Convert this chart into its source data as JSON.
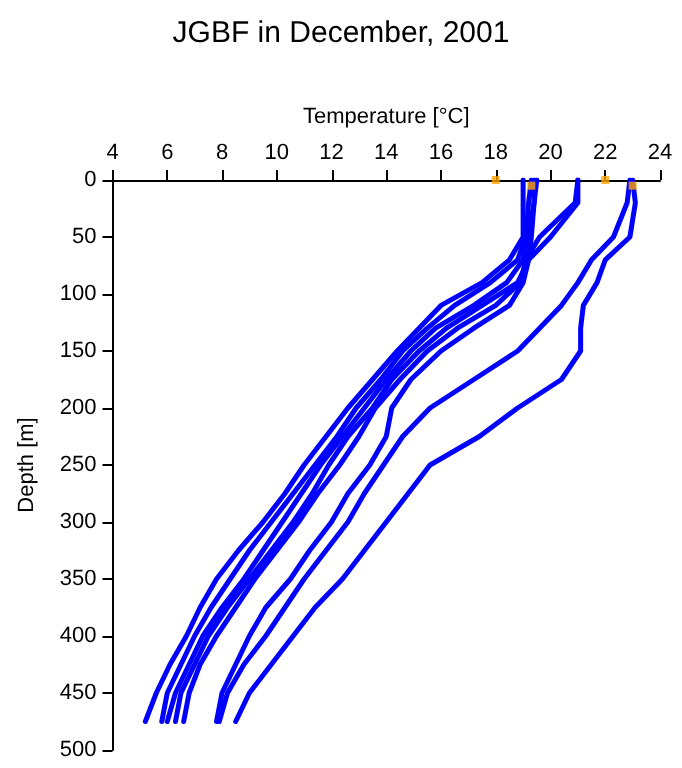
{
  "chart_data": {
    "type": "line",
    "title": "JGBF in December, 2001",
    "xlabel": "Temperature [°C]",
    "ylabel": "Depth [m]",
    "xlim": [
      4,
      24
    ],
    "xticks": [
      4,
      6,
      8,
      10,
      12,
      14,
      16,
      18,
      20,
      22,
      24
    ],
    "ylim": [
      500,
      0
    ],
    "yticks": [
      0,
      50,
      100,
      150,
      200,
      250,
      300,
      350,
      400,
      450,
      500
    ],
    "grid": false,
    "marker": "none",
    "line_style": "solid",
    "series": [
      {
        "color": "#0000ff",
        "x": [
          19.0,
          19.0,
          19.0,
          18.5,
          17.5,
          16.0,
          15.2,
          14.4,
          13.5,
          12.6,
          11.8,
          11.0,
          10.3,
          9.5,
          8.6,
          7.8,
          7.2,
          6.7,
          6.1,
          5.6,
          5.2
        ],
        "values": [
          0,
          20,
          50,
          70,
          90,
          110,
          130,
          150,
          175,
          200,
          225,
          250,
          275,
          300,
          325,
          350,
          375,
          400,
          425,
          450,
          475
        ]
      },
      {
        "color": "#0000ff",
        "x": [
          19.3,
          19.2,
          19.1,
          18.8,
          17.8,
          16.5,
          15.5,
          14.6,
          13.8,
          12.9,
          12.2,
          11.4,
          10.6,
          9.8,
          9.0,
          8.3,
          7.6,
          7.0,
          6.5,
          6.0,
          5.8
        ],
        "values": [
          0,
          20,
          50,
          70,
          90,
          110,
          130,
          150,
          175,
          200,
          225,
          250,
          275,
          300,
          325,
          350,
          375,
          400,
          425,
          450,
          475
        ]
      },
      {
        "color": "#0000ff",
        "x": [
          19.5,
          19.4,
          19.2,
          19.0,
          18.4,
          17.2,
          15.8,
          14.9,
          14.0,
          13.2,
          12.4,
          11.6,
          10.9,
          10.2,
          9.5,
          8.8,
          8.0,
          7.3,
          6.8,
          6.3,
          6.0
        ],
        "values": [
          0,
          20,
          50,
          70,
          90,
          110,
          130,
          150,
          175,
          200,
          225,
          250,
          275,
          300,
          325,
          350,
          375,
          400,
          425,
          450,
          475
        ]
      },
      {
        "color": "#0000ff",
        "x": [
          21.0,
          21.0,
          20.0,
          19.2,
          18.8,
          17.5,
          16.2,
          15.2,
          14.2,
          13.5,
          12.6,
          11.9,
          11.3,
          10.6,
          9.8,
          9.0,
          8.2,
          7.5,
          7.0,
          6.5,
          6.3
        ],
        "values": [
          0,
          20,
          50,
          70,
          90,
          110,
          130,
          150,
          175,
          200,
          225,
          250,
          275,
          300,
          325,
          350,
          375,
          400,
          425,
          450,
          475
        ]
      },
      {
        "color": "#0000ff",
        "x": [
          21.0,
          20.9,
          19.6,
          19.1,
          18.9,
          18.0,
          16.6,
          15.5,
          14.5,
          13.6,
          13.0,
          12.3,
          11.5,
          10.8,
          10.0,
          9.2,
          8.5,
          7.8,
          7.2,
          6.8,
          6.6
        ],
        "values": [
          0,
          20,
          50,
          70,
          90,
          110,
          130,
          150,
          175,
          200,
          225,
          250,
          275,
          300,
          325,
          350,
          375,
          400,
          425,
          450,
          475
        ]
      },
      {
        "color": "#0000ff",
        "x": [
          19.4,
          19.4,
          19.3,
          19.2,
          19.0,
          18.5,
          17.2,
          16.0,
          14.9,
          14.2,
          14.0,
          13.4,
          12.6,
          12.0,
          11.2,
          10.5,
          9.6,
          9.0,
          8.5,
          8.0,
          7.8
        ],
        "values": [
          0,
          20,
          50,
          70,
          90,
          110,
          130,
          150,
          175,
          200,
          225,
          250,
          275,
          300,
          325,
          350,
          375,
          400,
          425,
          450,
          475
        ]
      },
      {
        "color": "#0000ff",
        "x": [
          23.0,
          23.1,
          22.9,
          22.0,
          21.7,
          21.2,
          21.1,
          21.1,
          20.4,
          18.8,
          17.4,
          15.6,
          14.8,
          14.0,
          13.2,
          12.4,
          11.4,
          10.6,
          9.8,
          9.0,
          8.5
        ],
        "values": [
          0,
          20,
          50,
          70,
          90,
          110,
          130,
          150,
          175,
          200,
          225,
          250,
          275,
          300,
          325,
          350,
          375,
          400,
          425,
          450,
          475
        ]
      },
      {
        "color": "#0000ff",
        "x": [
          22.9,
          22.8,
          22.3,
          21.5,
          21.0,
          20.4,
          19.6,
          18.8,
          17.2,
          15.6,
          14.6,
          13.9,
          13.2,
          12.6,
          11.8,
          11.0,
          10.3,
          9.6,
          8.8,
          8.2,
          7.9
        ],
        "values": [
          0,
          20,
          50,
          70,
          90,
          110,
          130,
          150,
          175,
          200,
          225,
          250,
          275,
          300,
          325,
          350,
          375,
          400,
          425,
          450,
          475
        ]
      },
      {
        "type": "scatter",
        "marker": "square",
        "color": "#ffa500",
        "x": [
          18.0,
          19.3,
          22.0,
          23.0
        ],
        "values": [
          0,
          5,
          0,
          5
        ]
      }
    ]
  }
}
